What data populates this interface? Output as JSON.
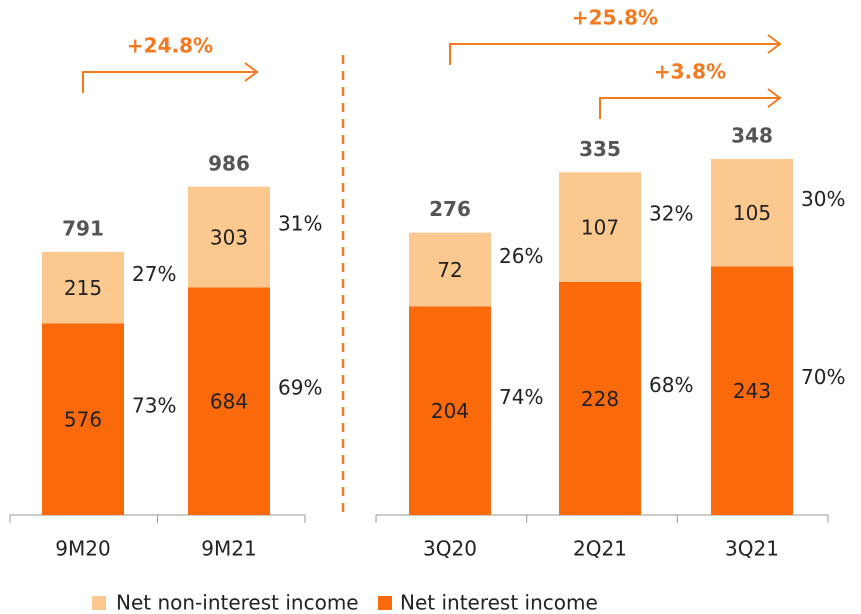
{
  "chart_data": [
    {
      "type": "stacked_bar",
      "categories": [
        "9M20",
        "9M21"
      ],
      "series": [
        {
          "name": "Net interest income",
          "color": "#fa6a0a",
          "values": [
            576,
            684
          ],
          "share_labels": [
            "73%",
            "69%"
          ]
        },
        {
          "name": "Net non-interest income",
          "color": "#fbc98f",
          "values": [
            215,
            303
          ],
          "share_labels": [
            "27%",
            "31%"
          ]
        }
      ],
      "totals": [
        791,
        986
      ],
      "annotations": [
        {
          "text": "+24.8%",
          "from": "9M20",
          "to": "9M21"
        }
      ]
    },
    {
      "type": "stacked_bar",
      "categories": [
        "3Q20",
        "2Q21",
        "3Q21"
      ],
      "series": [
        {
          "color": "#fa6a0a",
          "values": [
            204,
            228,
            243
          ],
          "share_labels": [
            "74%",
            "68%",
            "70%"
          ]
        },
        {
          "color": "#fbc98f",
          "values": [
            72,
            107,
            105
          ],
          "share_labels": [
            "26%",
            "32%",
            "30%"
          ]
        }
      ],
      "totals": [
        276,
        335,
        348
      ],
      "annotations": [
        {
          "text": "+25.8%",
          "from": "3Q20",
          "to": "3Q21"
        },
        {
          "text": "+3.8%",
          "from": "2Q21",
          "to": "3Q21"
        }
      ]
    }
  ]
}
